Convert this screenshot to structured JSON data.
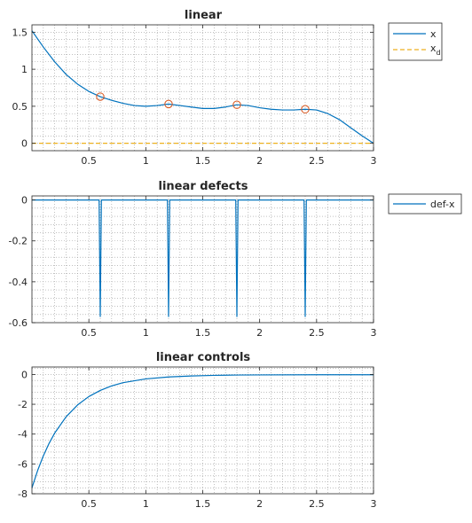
{
  "colors": {
    "series_blue": "#0072BD",
    "series_orange": "#EDB120",
    "marker_red": "#D95319"
  },
  "chart_data": [
    {
      "type": "line",
      "title": "linear",
      "xlim": [
        0,
        3
      ],
      "ylim": [
        -0.1,
        1.6
      ],
      "grid": "minor-dotted",
      "xticks": [
        0.5,
        1,
        1.5,
        2,
        2.5,
        3
      ],
      "xtick_labels": [
        "0.5",
        "1",
        "1.5",
        "2",
        "2.5",
        "3"
      ],
      "yticks": [
        0,
        0.5,
        1,
        1.5
      ],
      "ytick_labels": [
        "0",
        "0.5",
        "1",
        "1.5"
      ],
      "legend_position": "outside-right-top",
      "series": [
        {
          "name": "x",
          "color": "#0072BD",
          "style": "solid",
          "x": [
            0,
            0.1,
            0.2,
            0.3,
            0.4,
            0.5,
            0.6,
            0.7,
            0.8,
            0.9,
            1.0,
            1.1,
            1.2,
            1.3,
            1.4,
            1.5,
            1.6,
            1.7,
            1.8,
            1.9,
            2.0,
            2.1,
            2.2,
            2.3,
            2.4,
            2.5,
            2.6,
            2.7,
            2.8,
            2.9,
            3.0
          ],
          "y": [
            1.52,
            1.3,
            1.1,
            0.93,
            0.8,
            0.7,
            0.63,
            0.58,
            0.54,
            0.51,
            0.5,
            0.51,
            0.53,
            0.51,
            0.49,
            0.47,
            0.47,
            0.49,
            0.52,
            0.51,
            0.48,
            0.46,
            0.45,
            0.45,
            0.46,
            0.45,
            0.4,
            0.32,
            0.21,
            0.1,
            0.0
          ]
        },
        {
          "name": "x_d",
          "color": "#EDB120",
          "style": "dashed",
          "x": [
            0,
            3
          ],
          "y": [
            0,
            0
          ]
        }
      ],
      "markers": {
        "x": [
          0.6,
          1.2,
          1.8,
          2.4
        ],
        "y": [
          0.63,
          0.53,
          0.52,
          0.46
        ],
        "color": "#D95319",
        "shape": "circle"
      },
      "legend_labels": {
        "x": "x",
        "xd_main": "x",
        "xd_sub": "d"
      }
    },
    {
      "type": "line",
      "title": "linear  defects",
      "xlim": [
        0,
        3
      ],
      "ylim": [
        -0.6,
        0.02
      ],
      "grid": "minor-dotted",
      "xticks": [
        0.5,
        1,
        1.5,
        2,
        2.5,
        3
      ],
      "xtick_labels": [
        "0.5",
        "1",
        "1.5",
        "2",
        "2.5",
        "3"
      ],
      "yticks": [
        0,
        -0.2,
        -0.4,
        -0.6
      ],
      "ytick_labels": [
        "0",
        "-0.2",
        "-0.4",
        "-0.6"
      ],
      "legend_position": "outside-right-top",
      "series": [
        {
          "name": "def-x",
          "color": "#0072BD",
          "style": "solid",
          "x": [
            0,
            0.59,
            0.6,
            0.61,
            1.19,
            1.2,
            1.21,
            1.79,
            1.8,
            1.81,
            2.39,
            2.4,
            2.41,
            3.0
          ],
          "y": [
            0,
            0,
            -0.57,
            0,
            0,
            -0.57,
            0,
            0,
            -0.57,
            0,
            0,
            -0.57,
            0,
            0
          ]
        }
      ]
    },
    {
      "type": "line",
      "title": "linear   controls",
      "xlim": [
        0,
        3
      ],
      "ylim": [
        -8,
        0.5
      ],
      "grid": "minor-dotted",
      "xticks": [
        0.5,
        1,
        1.5,
        2,
        2.5,
        3
      ],
      "xtick_labels": [
        "0.5",
        "1",
        "1.5",
        "2",
        "2.5",
        "3"
      ],
      "yticks": [
        0,
        -2,
        -4,
        -6,
        -8
      ],
      "ytick_labels": [
        "0",
        "-2",
        "-4",
        "-6",
        "-8"
      ],
      "series": [
        {
          "name": "",
          "color": "#0072BD",
          "style": "solid",
          "x": [
            0,
            0.05,
            0.1,
            0.15,
            0.2,
            0.3,
            0.4,
            0.5,
            0.6,
            0.7,
            0.8,
            1.0,
            1.2,
            1.4,
            1.6,
            1.8,
            2.0,
            2.5,
            3.0
          ],
          "y": [
            -7.6,
            -6.44,
            -5.46,
            -4.63,
            -3.93,
            -2.84,
            -2.05,
            -1.48,
            -1.07,
            -0.77,
            -0.55,
            -0.3,
            -0.17,
            -0.1,
            -0.06,
            -0.04,
            -0.03,
            -0.02,
            -0.02
          ]
        }
      ]
    }
  ]
}
